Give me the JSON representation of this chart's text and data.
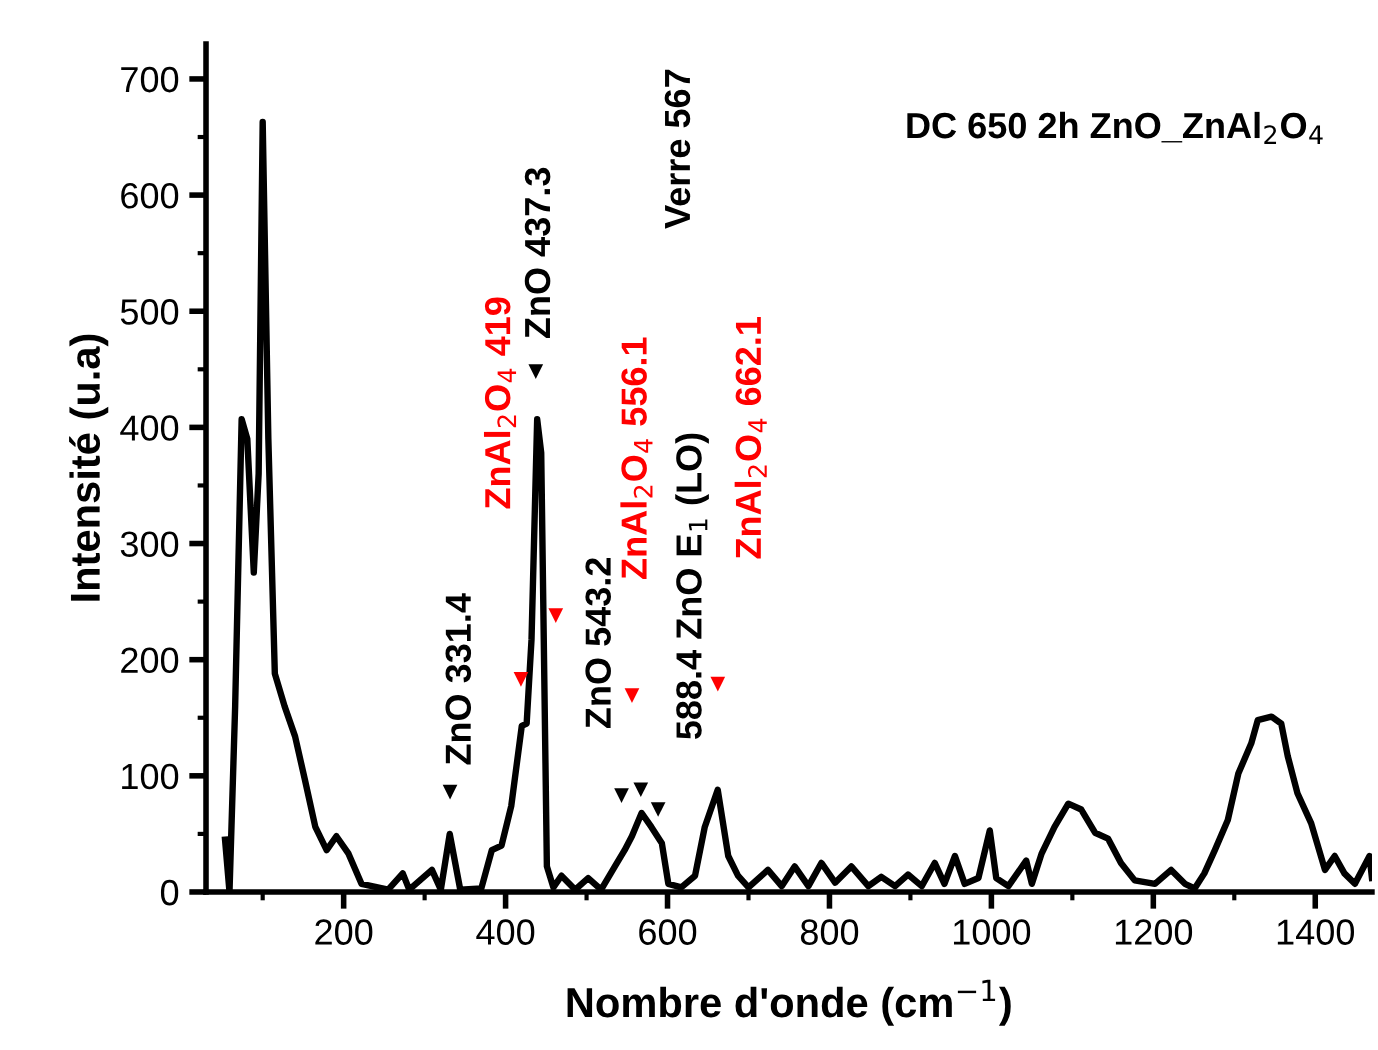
{
  "chart_data": {
    "type": "line",
    "title": "DC 650 2h ZnO_ZnAl$_{2}$O$_{4}$",
    "xlabel": "Nombre d'onde (cm$^{−1}$)",
    "ylabel": "Intensité (u.a)",
    "xlim": [
      30,
      1470
    ],
    "ylim": [
      0,
      730
    ],
    "xticks": [
      {
        "value": 100,
        "label": null
      },
      200,
      {
        "value": 300,
        "label": null
      },
      400,
      {
        "value": 500,
        "label": null
      },
      600,
      {
        "value": 700,
        "label": null
      },
      800,
      {
        "value": 900,
        "label": null
      },
      1000,
      {
        "value": 1100,
        "label": null
      },
      1200,
      {
        "value": 1300,
        "label": null
      },
      1400
    ],
    "yticks": [
      0,
      {
        "value": 50,
        "label": null
      },
      100,
      {
        "value": 150,
        "label": null
      },
      200,
      {
        "value": 250,
        "label": null
      },
      300,
      {
        "value": 350,
        "label": null
      },
      400,
      {
        "value": 450,
        "label": null
      },
      500,
      {
        "value": 550,
        "label": null
      },
      600,
      {
        "value": 650,
        "label": null
      },
      700
    ],
    "grid": false,
    "legend": false,
    "series": [
      {
        "color": "#000000",
        "marker": "none",
        "line_style": "solid",
        "x": [
          53.5,
          59,
          66,
          74,
          81,
          89,
          95,
          100,
          107,
          115,
          127,
          140,
          152,
          165,
          179,
          191,
          206,
          222,
          255,
          273,
          281,
          309,
          320,
          331,
          344,
          370,
          383,
          395,
          407,
          420,
          426,
          432,
          439,
          444,
          451,
          459,
          469,
          486,
          502,
          518,
          535,
          547,
          556,
          568,
          580,
          593,
          601,
          617,
          634,
          646,
          662,
          675,
          687,
          700,
          724,
          741,
          757,
          774,
          790,
          807,
          827,
          848,
          864,
          881,
          897,
          914,
          930,
          942,
          955,
          967,
          984,
          998,
          1006,
          1021,
          1043,
          1050,
          1062,
          1078,
          1095,
          1111,
          1128,
          1144,
          1160,
          1177,
          1202,
          1222,
          1239,
          1251,
          1263,
          1276,
          1292,
          1305,
          1321,
          1329,
          1346,
          1358,
          1366,
          1378,
          1395,
          1412,
          1424,
          1436,
          1449,
          1467,
          1470
        ],
        "values": [
          45,
          0,
          160,
          407,
          390,
          275,
          360,
          663,
          390,
          188,
          160,
          134,
          97,
          56,
          36,
          48,
          33,
          7,
          2,
          16,
          2,
          19,
          2,
          50,
          2,
          3,
          36,
          40,
          74,
          143,
          145,
          217,
          407,
          378,
          22,
          4,
          14,
          2,
          12,
          2,
          22,
          36,
          48,
          68,
          56,
          42,
          7,
          4,
          14,
          56,
          88,
          31,
          14,
          4,
          19,
          5,
          22,
          5,
          25,
          8,
          22,
          5,
          13,
          5,
          15,
          5,
          25,
          7,
          31,
          7,
          12,
          53,
          12,
          5,
          27,
          7,
          33,
          56,
          76,
          71,
          51,
          46,
          25,
          10,
          7,
          19,
          7,
          3,
          16,
          36,
          62,
          102,
          128,
          148,
          151,
          145,
          117,
          85,
          59,
          19,
          31,
          16,
          7,
          31,
          12
        ]
      },
      {
        "type": "scatter",
        "color": "#000000",
        "marker": "triangle",
        "x": [
          331.4,
          437.3,
          543.2,
          567,
          588.4
        ],
        "values": [
          86,
          448,
          83,
          88,
          71
        ]
      },
      {
        "type": "scatter",
        "color": "#ff0000",
        "marker": "triangle",
        "x": [
          419,
          462,
          556.1,
          662.1
        ],
        "values": [
          183,
          238,
          169,
          179
        ]
      }
    ],
    "annotations": [
      "ZnO 331.4",
      "ZnAl$_{2}$O$_{4}$ 419",
      "ZnO 437.3",
      "ZnO 543.2",
      "ZnAl$_{2}$O$_{4}$ 556.1",
      "Verre 567",
      "588.4 ZnO E$_{1}$ (LO)",
      "ZnAl$_{2}$O$_{4}$ 662.1"
    ]
  }
}
